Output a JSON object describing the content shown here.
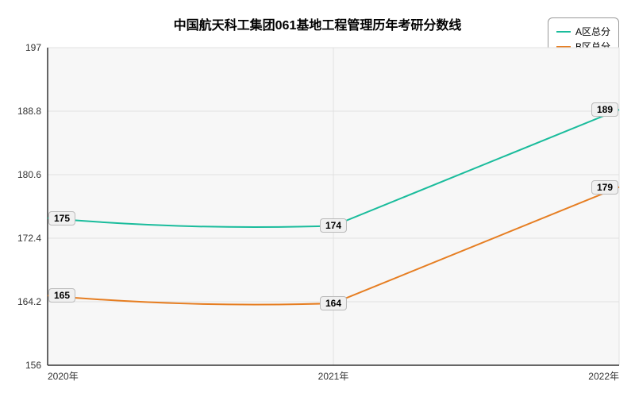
{
  "chart": {
    "type": "line",
    "title": "中国航天科工集团061基地工程管理历年考研分数线",
    "title_fontsize": 16,
    "background_color": "#ffffff",
    "plot_background_color": "#f7f7f7",
    "grid_color": "#e0e0e0",
    "axis_color": "#333333",
    "categories": [
      "2020年",
      "2021年",
      "2022年"
    ],
    "xlim": [
      0,
      2
    ],
    "ylim": [
      156,
      197
    ],
    "yticks": [
      156,
      164.2,
      172.4,
      180.6,
      188.8,
      197
    ],
    "label_fontsize": 12,
    "line_width": 2,
    "curve_smooth": true,
    "series": [
      {
        "name": "A区总分",
        "color": "#1abc9c",
        "values": [
          175,
          174,
          189
        ],
        "labels": [
          "175",
          "174",
          "189"
        ]
      },
      {
        "name": "B区总分",
        "color": "#e67e22",
        "values": [
          165,
          164,
          179
        ],
        "labels": [
          "165",
          "164",
          "179"
        ]
      }
    ],
    "legend": {
      "position": "top-right",
      "border_color": "#999999",
      "fontsize": 12
    }
  }
}
